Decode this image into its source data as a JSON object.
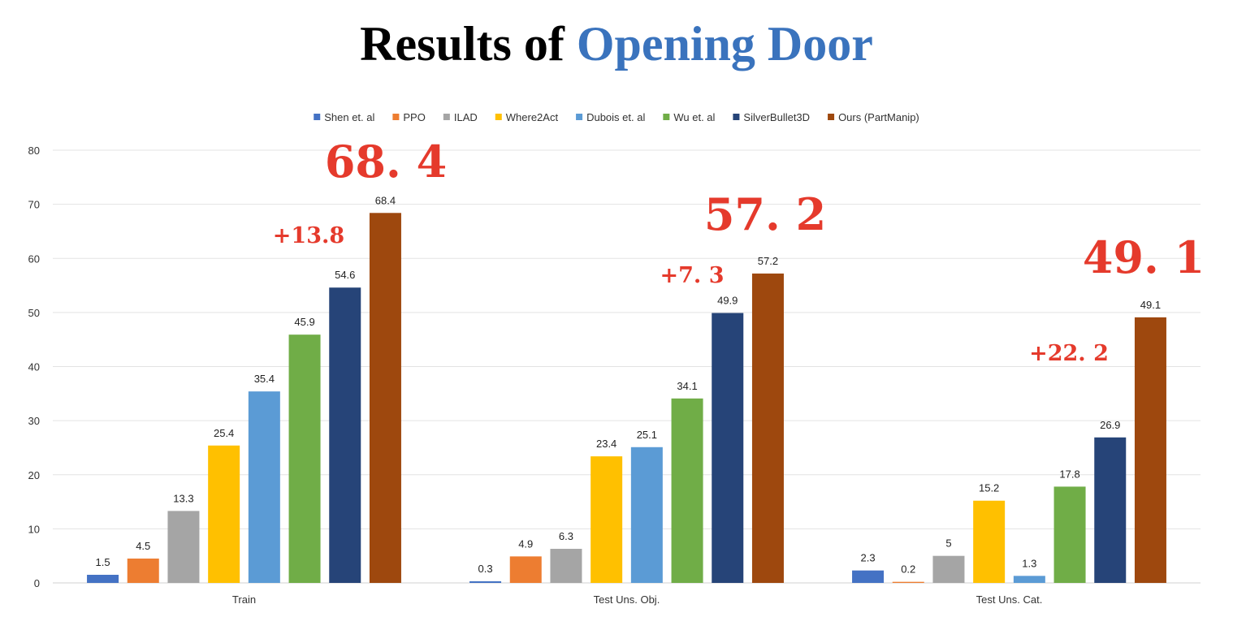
{
  "title": {
    "part1": "Results of ",
    "part2": "Opening Door",
    "accent_color": "#3a73bd"
  },
  "chart_data": {
    "type": "bar",
    "title": "Results of Opening Door",
    "xlabel": "",
    "ylabel": "",
    "ylim": [
      0,
      80
    ],
    "y_ticks": [
      0,
      10,
      20,
      30,
      40,
      50,
      60,
      70,
      80
    ],
    "grid": true,
    "legend_position": "top",
    "categories": [
      "Train",
      "Test Uns. Obj.",
      "Test Uns. Cat."
    ],
    "series": [
      {
        "name": "Shen et. al",
        "color": "#4472c4",
        "values": [
          1.5,
          0.3,
          2.3
        ]
      },
      {
        "name": "PPO",
        "color": "#ed7d31",
        "values": [
          4.5,
          4.9,
          0.2
        ]
      },
      {
        "name": "ILAD",
        "color": "#a5a5a5",
        "values": [
          13.3,
          6.3,
          5
        ]
      },
      {
        "name": "Where2Act",
        "color": "#ffc000",
        "values": [
          25.4,
          23.4,
          15.2
        ]
      },
      {
        "name": "Dubois et. al",
        "color": "#5b9bd5",
        "values": [
          35.4,
          25.1,
          1.3
        ]
      },
      {
        "name": "Wu et. al",
        "color": "#70ad47",
        "values": [
          45.9,
          34.1,
          17.8
        ]
      },
      {
        "name": "SilverBullet3D",
        "color": "#264478",
        "values": [
          54.6,
          49.9,
          26.9
        ]
      },
      {
        "name": "Ours (PartManip)",
        "color": "#9e480e",
        "values": [
          68.4,
          57.2,
          49.1
        ]
      }
    ],
    "annotations": [
      {
        "category": "Train",
        "improvement": "+13.8",
        "highlight": "68. 4"
      },
      {
        "category": "Test Uns. Obj.",
        "improvement": "+7. 3",
        "highlight": "57. 2"
      },
      {
        "category": "Test Uns. Cat.",
        "improvement": "+22. 2",
        "highlight": "49. 1"
      }
    ],
    "annotation_color": "#e53a2c"
  }
}
